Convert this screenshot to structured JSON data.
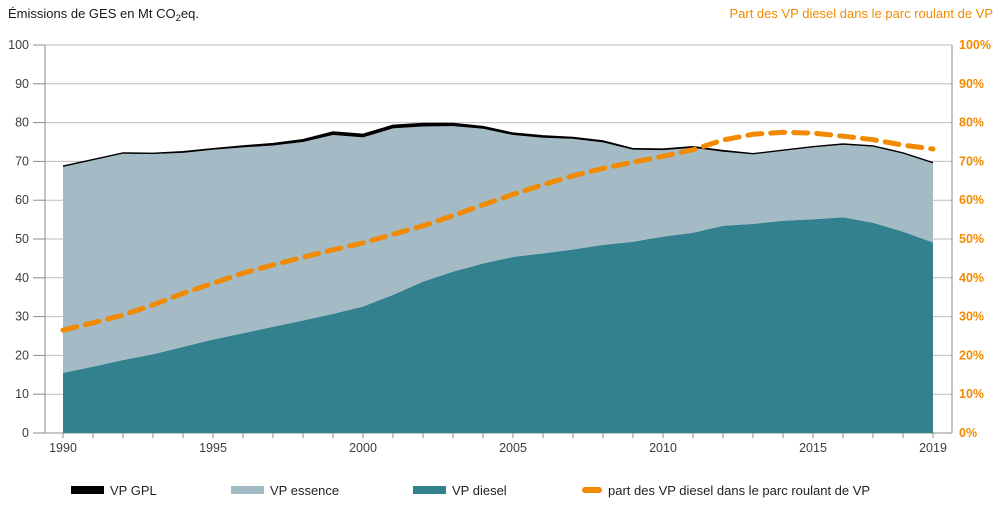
{
  "header": {
    "left_title": {
      "prefix": "Émissions de GES en Mt CO",
      "sub": "2",
      "suffix": "eq."
    },
    "right_title": "Part des VP diesel dans le parc roulant de VP"
  },
  "colors": {
    "gpl": "#000000",
    "essence": "#a4bbc5",
    "diesel": "#33818f",
    "share": "#f18a00",
    "grid": "#bdbdbd",
    "axis": "#8c8c8c",
    "text": "#3d3d3d"
  },
  "legend": [
    {
      "label": "VP GPL",
      "color": "#000000",
      "shape": "bar"
    },
    {
      "label": "VP essence",
      "color": "#a4bbc5",
      "shape": "bar"
    },
    {
      "label": "VP diesel",
      "color": "#33818f",
      "shape": "bar"
    },
    {
      "label": "part des VP diesel dans le parc roulant de VP",
      "color": "#f18a00",
      "shape": "dash"
    }
  ],
  "chart_data": {
    "type": "area",
    "title_left": "Émissions de GES en Mt CO2eq.",
    "title_right": "Part des VP diesel dans le parc roulant de VP",
    "x": [
      1990,
      1991,
      1992,
      1993,
      1994,
      1995,
      1996,
      1997,
      1998,
      1999,
      2000,
      2001,
      2002,
      2003,
      2004,
      2005,
      2006,
      2007,
      2008,
      2009,
      2010,
      2011,
      2012,
      2013,
      2014,
      2015,
      2016,
      2017,
      2018,
      2019
    ],
    "series": [
      {
        "name": "VP diesel",
        "type": "area-stacked",
        "color": "#33818f",
        "values": [
          15.5,
          17.1,
          18.8,
          20.3,
          22.2,
          24.1,
          25.7,
          27.4,
          29.0,
          30.7,
          32.6,
          35.6,
          39.0,
          41.6,
          43.7,
          45.4,
          46.3,
          47.3,
          48.5,
          49.3,
          50.6,
          51.6,
          53.4,
          53.9,
          54.7,
          55.1,
          55.6,
          54.2,
          51.9,
          49.1
        ]
      },
      {
        "name": "VP essence",
        "type": "area-stacked",
        "color": "#a4bbc5",
        "values": [
          53.1,
          53.2,
          53.2,
          51.6,
          50.0,
          48.9,
          47.9,
          46.7,
          46.0,
          46.1,
          43.6,
          42.9,
          40.0,
          37.5,
          34.7,
          31.4,
          29.8,
          28.5,
          26.4,
          23.7,
          22.3,
          21.9,
          19.1,
          17.9,
          18.0,
          18.5,
          18.7,
          19.6,
          20.1,
          20.4
        ]
      },
      {
        "name": "VP GPL",
        "type": "area-stacked",
        "color": "#000000",
        "values": [
          0.2,
          0.2,
          0.2,
          0.2,
          0.3,
          0.3,
          0.4,
          0.5,
          0.6,
          0.8,
          0.8,
          0.8,
          0.8,
          0.7,
          0.6,
          0.5,
          0.5,
          0.4,
          0.4,
          0.3,
          0.3,
          0.3,
          0.3,
          0.2,
          0.2,
          0.2,
          0.2,
          0.2,
          0.2,
          0.2
        ]
      },
      {
        "name": "part des VP diesel dans le parc roulant de VP",
        "type": "line-dashed",
        "axis": "right",
        "color": "#f18a00",
        "values": [
          26.5,
          28.4,
          30.4,
          33.0,
          36.0,
          38.6,
          41.2,
          43.3,
          45.3,
          47.2,
          49.0,
          51.2,
          53.4,
          56.0,
          58.8,
          61.5,
          64.0,
          66.3,
          68.2,
          69.8,
          71.3,
          73.0,
          75.5,
          77.0,
          77.5,
          77.3,
          76.5,
          75.6,
          74.2,
          73.2
        ]
      }
    ],
    "left_axis": {
      "min": 0,
      "max": 100,
      "ticks": [
        0,
        10,
        20,
        30,
        40,
        50,
        60,
        70,
        80,
        90,
        100
      ],
      "labels": [
        "0",
        "10",
        "20",
        "30",
        "40",
        "50",
        "60",
        "70",
        "80",
        "90",
        "100"
      ]
    },
    "right_axis": {
      "min": 0,
      "max": 100,
      "labels": [
        "0%",
        "10%",
        "20%",
        "30%",
        "40%",
        "50%",
        "60%",
        "70%",
        "80%",
        "90%",
        "100%"
      ]
    },
    "x_labels": [
      "1990",
      "1995",
      "2000",
      "2005",
      "2010",
      "2015",
      "2019"
    ],
    "grid": true,
    "legend_position": "bottom"
  }
}
